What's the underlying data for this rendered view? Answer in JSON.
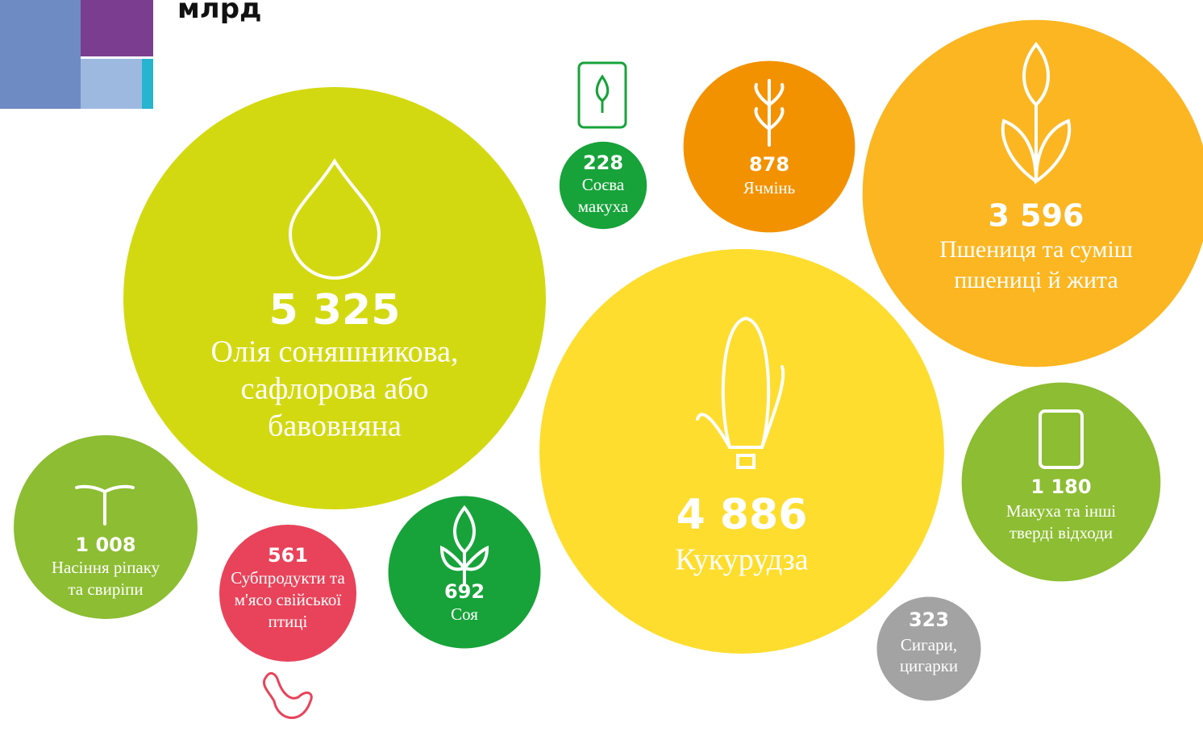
{
  "chart_data": {
    "type": "bubble",
    "title": "млрд",
    "categories": [
      [
        "Олія соняшникова,",
        "сафлорова або",
        "бавовняна"
      ],
      [
        "Кукурудза"
      ],
      [
        "Пшениця та суміш",
        "пшениці й жита"
      ],
      [
        "Макуха та інші",
        "тверді відходи"
      ],
      [
        "Насіння ріпаку",
        "та свиріпи"
      ],
      [
        "Ячмінь"
      ],
      [
        "Соя"
      ],
      [
        "Субпродукти та",
        "м'ясо свійської",
        "птиці"
      ],
      [
        "Сигари,",
        "цигарки"
      ],
      [
        "Соєва",
        "макуха"
      ]
    ],
    "values": [
      5325,
      4886,
      3596,
      1180,
      1008,
      878,
      692,
      561,
      323,
      228
    ],
    "value_labels": [
      "5 325",
      "4 886",
      "3 596",
      "1 180",
      "1 008",
      "878",
      "692",
      "561",
      "323",
      "228"
    ],
    "colors": [
      "#d3d910",
      "#fedd2e",
      "#fbb622",
      "#8cbd32",
      "#8cbd32",
      "#f39200",
      "#17a33a",
      "#e8435a",
      "#a3a3a3",
      "#17a33a"
    ]
  }
}
